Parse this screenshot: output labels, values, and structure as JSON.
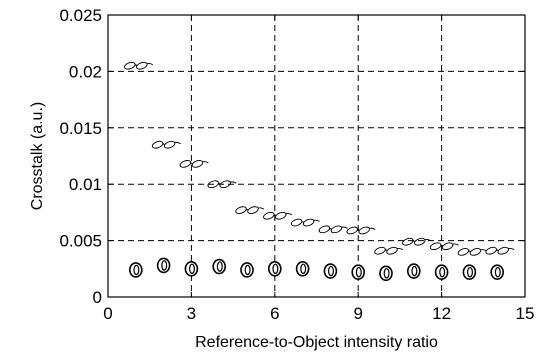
{
  "chart_data": {
    "type": "scatter",
    "title": "",
    "xlabel": "Reference-to-Object intensity ratio",
    "ylabel": "Crosstalk (a.u.)",
    "xlim": [
      0,
      15
    ],
    "ylim": [
      0,
      0.025
    ],
    "x_ticks": [
      0,
      3,
      6,
      9,
      12,
      15
    ],
    "y_ticks": [
      0,
      0.005,
      0.01,
      0.015,
      0.02,
      0.025
    ],
    "x_tick_labels": [
      "0",
      "3",
      "6",
      "9",
      "12",
      "15"
    ],
    "y_tick_labels": [
      "0",
      "0.005",
      "0.01",
      "0.015",
      "0.02",
      "0.025"
    ],
    "grid": true,
    "series": [
      {
        "marker": "glasses-hollow",
        "x": [
          1,
          2,
          3,
          4,
          5,
          6,
          7,
          8,
          9,
          10,
          11,
          12,
          13,
          14
        ],
        "y": [
          0.0205,
          0.0135,
          0.0118,
          0.01,
          0.0077,
          0.0072,
          0.0066,
          0.006,
          0.0059,
          0.0041,
          0.0049,
          0.0045,
          0.004,
          0.0041
        ]
      },
      {
        "marker": "circle-hollow-thick",
        "x": [
          1,
          2,
          3,
          4,
          5,
          6,
          7,
          8,
          9,
          10,
          11,
          12,
          13,
          14
        ],
        "y": [
          0.0024,
          0.0028,
          0.0025,
          0.0027,
          0.0024,
          0.0025,
          0.0025,
          0.0023,
          0.0022,
          0.0021,
          0.0023,
          0.0022,
          0.0022,
          0.0022
        ]
      }
    ]
  }
}
